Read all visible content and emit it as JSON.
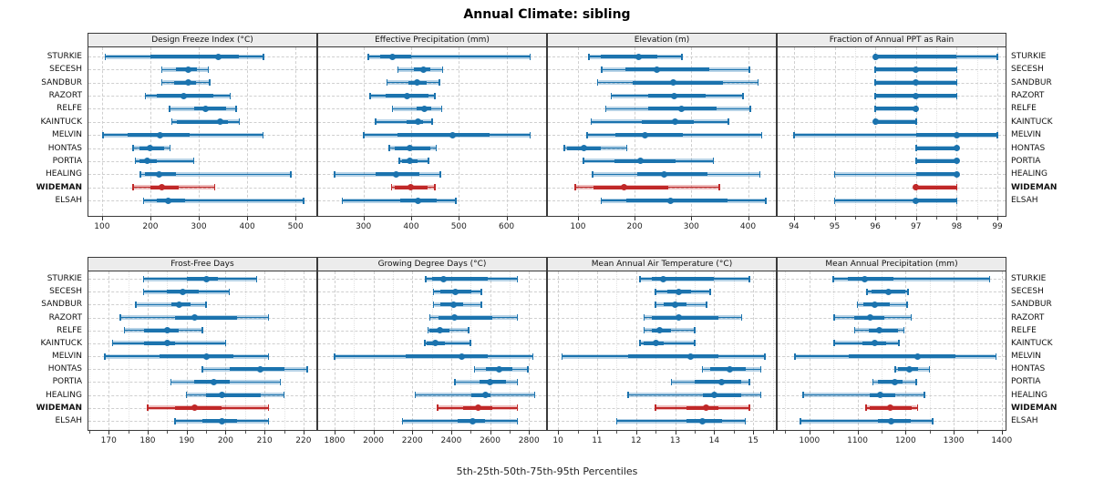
{
  "title": "Annual Climate: sibling",
  "caption": "5th-25th-50th-75th-95th Percentiles",
  "highlight_site": "WIDEMAN",
  "colors": {
    "series": "#1b73ae",
    "series_band": "rgba(31,119,180,0.32)",
    "highlight": "#c02828",
    "highlight_band": "rgba(200,40,40,0.30)",
    "header_bg": "#ececec",
    "grid": "#cfcfcf"
  },
  "sites": [
    "STURKIE",
    "SECESH",
    "SANDBUR",
    "RAZORT",
    "RELFE",
    "KAINTUCK",
    "MELVIN",
    "HONTAS",
    "PORTIA",
    "HEALING",
    "WIDEMAN",
    "ELSAH"
  ],
  "chart_data": {
    "type": "dot-interval-trellis",
    "percentiles": [
      5,
      25,
      50,
      75,
      95
    ],
    "layout": "2 rows x 4 panels, shared site axis, labels both sides",
    "panels": [
      {
        "title": "Design Freeze Index (°C)",
        "xlim": [
          72,
          543
        ],
        "ticks": [
          100,
          200,
          300,
          400,
          500
        ],
        "minor_step": null,
        "values": [
          [
            107,
            200,
            340,
            383,
            434
          ],
          [
            224,
            253,
            278,
            297,
            320
          ],
          [
            224,
            249,
            279,
            295,
            323
          ],
          [
            190,
            213,
            269,
            330,
            365
          ],
          [
            240,
            290,
            314,
            356,
            377
          ],
          [
            244,
            255,
            345,
            361,
            384
          ],
          [
            102,
            153,
            219,
            281,
            433
          ],
          [
            164,
            177,
            199,
            228,
            241
          ],
          [
            169,
            178,
            194,
            213,
            290
          ],
          [
            179,
            188,
            218,
            253,
            490
          ],
          [
            164,
            200,
            224,
            259,
            333
          ],
          [
            186,
            214,
            236,
            272,
            517
          ]
        ]
      },
      {
        "title": "Effective Precipitation (mm)",
        "xlim": [
          205,
          683
        ],
        "ticks": [
          300,
          400,
          500,
          600
        ],
        "minor_step": null,
        "values": [
          [
            310,
            335,
            361,
            400,
            650
          ],
          [
            372,
            405,
            426,
            441,
            466
          ],
          [
            349,
            394,
            412,
            432,
            459
          ],
          [
            314,
            347,
            392,
            436,
            450
          ],
          [
            361,
            412,
            428,
            442,
            464
          ],
          [
            325,
            390,
            415,
            425,
            444
          ],
          [
            301,
            372,
            487,
            564,
            650
          ],
          [
            354,
            366,
            398,
            440,
            453
          ],
          [
            375,
            380,
            398,
            413,
            436
          ],
          [
            239,
            325,
            368,
            417,
            461
          ],
          [
            359,
            366,
            400,
            434,
            450
          ],
          [
            256,
            378,
            414,
            453,
            494
          ]
        ]
      },
      {
        "title": "Elevation (m)",
        "xlim": [
          47,
          449
        ],
        "ticks": [
          100,
          200,
          300,
          400
        ],
        "minor_step": null,
        "values": [
          [
            119,
            141,
            207,
            240,
            283
          ],
          [
            142,
            184,
            239,
            332,
            402
          ],
          [
            135,
            197,
            268,
            356,
            418
          ],
          [
            159,
            224,
            270,
            326,
            391
          ],
          [
            149,
            224,
            283,
            345,
            404
          ],
          [
            123,
            213,
            271,
            305,
            365
          ],
          [
            116,
            166,
            218,
            285,
            424
          ],
          [
            76,
            80,
            110,
            141,
            186
          ],
          [
            110,
            164,
            210,
            272,
            339
          ],
          [
            126,
            205,
            252,
            329,
            421
          ],
          [
            95,
            127,
            181,
            260,
            349
          ],
          [
            141,
            185,
            264,
            363,
            431
          ]
        ]
      },
      {
        "title": "Fraction of Annual PPT as Rain",
        "xlim": [
          93.6,
          99.2
        ],
        "ticks": [
          94,
          95,
          96,
          97,
          98,
          99
        ],
        "minor_step": 0.5,
        "values": [
          [
            96,
            96,
            96,
            98,
            99
          ],
          [
            96,
            96,
            97,
            98,
            98
          ],
          [
            96,
            96,
            97,
            98,
            98
          ],
          [
            96,
            96,
            97,
            98,
            98
          ],
          [
            96,
            96,
            97,
            97,
            97
          ],
          [
            96,
            96,
            96,
            97,
            97
          ],
          [
            94,
            97,
            98,
            99,
            99
          ],
          [
            97,
            97,
            98,
            98,
            98
          ],
          [
            97,
            97,
            98,
            98,
            98
          ],
          [
            95,
            97,
            98,
            98,
            98
          ],
          [
            97,
            97,
            97,
            98,
            98
          ],
          [
            95,
            97,
            97,
            98,
            98
          ]
        ]
      },
      {
        "title": "Frost-Free Days",
        "xlim": [
          164.8,
          223.3
        ],
        "ticks": [
          170,
          180,
          190,
          200,
          210,
          220
        ],
        "minor_step": 5,
        "values": [
          [
            179,
            190,
            195,
            198,
            208
          ],
          [
            179,
            185,
            189,
            193,
            201
          ],
          [
            177,
            186,
            188,
            191,
            195
          ],
          [
            173,
            187,
            192,
            203,
            211
          ],
          [
            174,
            179,
            185,
            188,
            194
          ],
          [
            171,
            179,
            185,
            187,
            200
          ],
          [
            169,
            183,
            195,
            202,
            211
          ],
          [
            194,
            201,
            209,
            215,
            221
          ],
          [
            186,
            192,
            197,
            201,
            214
          ],
          [
            190,
            195,
            199,
            209,
            215
          ],
          [
            180,
            187,
            192,
            199,
            211
          ],
          [
            187,
            194,
            199,
            203,
            211
          ]
        ]
      },
      {
        "title": "Growing Degree Days (°C)",
        "xlim": [
          1716,
          2888
        ],
        "ticks": [
          1800,
          2000,
          2200,
          2400,
          2600,
          2800
        ],
        "minor_step": 100,
        "values": [
          [
            2270,
            2300,
            2360,
            2590,
            2740
          ],
          [
            2310,
            2345,
            2420,
            2505,
            2555
          ],
          [
            2310,
            2345,
            2410,
            2460,
            2555
          ],
          [
            2290,
            2335,
            2415,
            2610,
            2740
          ],
          [
            2280,
            2290,
            2340,
            2390,
            2490
          ],
          [
            2265,
            2275,
            2320,
            2370,
            2500
          ],
          [
            1800,
            2165,
            2455,
            2590,
            2820
          ],
          [
            2520,
            2580,
            2645,
            2715,
            2795
          ],
          [
            2420,
            2545,
            2600,
            2680,
            2740
          ],
          [
            2215,
            2505,
            2575,
            2600,
            2830
          ],
          [
            2330,
            2460,
            2540,
            2610,
            2740
          ],
          [
            2150,
            2435,
            2510,
            2575,
            2740
          ]
        ]
      },
      {
        "title": "Mean Annual Air Temperature (°C)",
        "xlim": [
          9.74,
          15.58
        ],
        "ticks": [
          10,
          11,
          12,
          13,
          14,
          15
        ],
        "minor_step": 0.5,
        "values": [
          [
            12.1,
            12.4,
            12.7,
            14.0,
            14.9
          ],
          [
            12.5,
            12.8,
            13.1,
            13.4,
            13.9
          ],
          [
            12.5,
            12.7,
            13.0,
            13.3,
            13.8
          ],
          [
            12.2,
            12.4,
            13.1,
            14.1,
            14.7
          ],
          [
            12.2,
            12.4,
            12.6,
            12.9,
            13.5
          ],
          [
            12.1,
            12.2,
            12.5,
            12.7,
            13.5
          ],
          [
            10.1,
            11.8,
            13.4,
            14.1,
            15.3
          ],
          [
            13.7,
            13.9,
            14.4,
            14.8,
            15.2
          ],
          [
            12.9,
            13.5,
            14.2,
            14.7,
            14.9
          ],
          [
            11.8,
            13.7,
            14.0,
            14.7,
            15.2
          ],
          [
            12.5,
            13.3,
            13.8,
            14.1,
            14.9
          ],
          [
            11.5,
            13.3,
            13.7,
            14.2,
            14.8
          ]
        ]
      },
      {
        "title": "Mean Annual Precipitation (mm)",
        "xlim": [
          934,
          1408
        ],
        "ticks": [
          1000,
          1100,
          1200,
          1300,
          1400
        ],
        "minor_step": 50,
        "values": [
          [
            1050,
            1080,
            1115,
            1175,
            1375
          ],
          [
            1120,
            1130,
            1165,
            1200,
            1205
          ],
          [
            1100,
            1113,
            1135,
            1167,
            1203
          ],
          [
            1052,
            1094,
            1127,
            1155,
            1212
          ],
          [
            1094,
            1123,
            1145,
            1184,
            1197
          ],
          [
            1052,
            1110,
            1135,
            1160,
            1186
          ],
          [
            970,
            1082,
            1225,
            1304,
            1388
          ],
          [
            1179,
            1184,
            1208,
            1226,
            1250
          ],
          [
            1132,
            1142,
            1178,
            1193,
            1222
          ],
          [
            987,
            1126,
            1148,
            1179,
            1239
          ],
          [
            1118,
            1126,
            1168,
            1212,
            1225
          ],
          [
            981,
            1143,
            1170,
            1211,
            1256
          ]
        ]
      }
    ]
  }
}
